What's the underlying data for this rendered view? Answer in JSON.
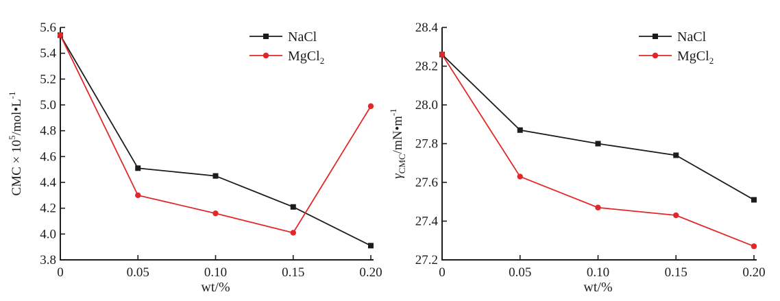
{
  "figure": {
    "background": "#ffffff",
    "description": "Two line charts of CMC and surface tension versus salt mass fraction"
  },
  "colors": {
    "axis": "#1c1c1c",
    "text": "#1c1c1c",
    "nacl": "#1c1c1c",
    "mgcl2": "#e22727"
  },
  "chart_data": [
    {
      "type": "line",
      "title": "",
      "xlabel": "wt/%",
      "ylabel": "CMC × 10⁵/mol•L⁻¹",
      "ylabel_parts": [
        {
          "t": "CMC × 10"
        },
        {
          "t": "5",
          "style": "sup"
        },
        {
          "t": "/mol•L"
        },
        {
          "t": "-1",
          "style": "sup"
        }
      ],
      "x": [
        0,
        0.05,
        0.1,
        0.15,
        0.2
      ],
      "xtick_labels": [
        "0",
        "0.05",
        "0.10",
        "0.15",
        "0.20"
      ],
      "xlim": [
        0,
        0.2
      ],
      "ylim": [
        3.8,
        5.6
      ],
      "ytick_labels": [
        "3.8",
        "4.0",
        "4.2",
        "4.4",
        "4.6",
        "4.8",
        "5.0",
        "5.2",
        "5.4",
        "5.6"
      ],
      "grid": false,
      "legend_position": "top-right",
      "series": [
        {
          "name": "NaCl",
          "label": "NaCl",
          "label_parts": [
            {
              "t": "NaCl"
            }
          ],
          "color": "#1c1c1c",
          "marker": "square",
          "values": [
            5.54,
            4.51,
            4.45,
            4.21,
            3.91
          ]
        },
        {
          "name": "MgCl2",
          "label": "MgCl₂",
          "label_parts": [
            {
              "t": "MgCl"
            },
            {
              "t": "2",
              "style": "sub"
            }
          ],
          "color": "#e22727",
          "marker": "circle",
          "values": [
            5.54,
            4.3,
            4.16,
            4.01,
            4.99
          ]
        }
      ]
    },
    {
      "type": "line",
      "title": "",
      "xlabel": "wt/%",
      "ylabel": "γCMC/mN•m⁻¹",
      "ylabel_parts": [
        {
          "t": "γ",
          "style": "italic"
        },
        {
          "t": "CMC",
          "style": "sub"
        },
        {
          "t": "/mN•m"
        },
        {
          "t": "-1",
          "style": "sup"
        }
      ],
      "x": [
        0,
        0.05,
        0.1,
        0.15,
        0.2
      ],
      "xtick_labels": [
        "0",
        "0.05",
        "0.10",
        "0.15",
        "0.20"
      ],
      "xlim": [
        0,
        0.2
      ],
      "ylim": [
        27.2,
        28.4
      ],
      "ytick_labels": [
        "27.2",
        "27.4",
        "27.6",
        "27.8",
        "28.0",
        "28.2",
        "28.4"
      ],
      "grid": false,
      "legend_position": "top-right",
      "series": [
        {
          "name": "NaCl",
          "label": "NaCl",
          "label_parts": [
            {
              "t": "NaCl"
            }
          ],
          "color": "#1c1c1c",
          "marker": "square",
          "values": [
            28.26,
            27.87,
            27.8,
            27.74,
            27.51
          ]
        },
        {
          "name": "MgCl2",
          "label": "MgCl₂",
          "label_parts": [
            {
              "t": "MgCl"
            },
            {
              "t": "2",
              "style": "sub"
            }
          ],
          "color": "#e22727",
          "marker": "circle",
          "values": [
            28.26,
            27.63,
            27.47,
            27.43,
            27.27
          ]
        }
      ]
    }
  ]
}
